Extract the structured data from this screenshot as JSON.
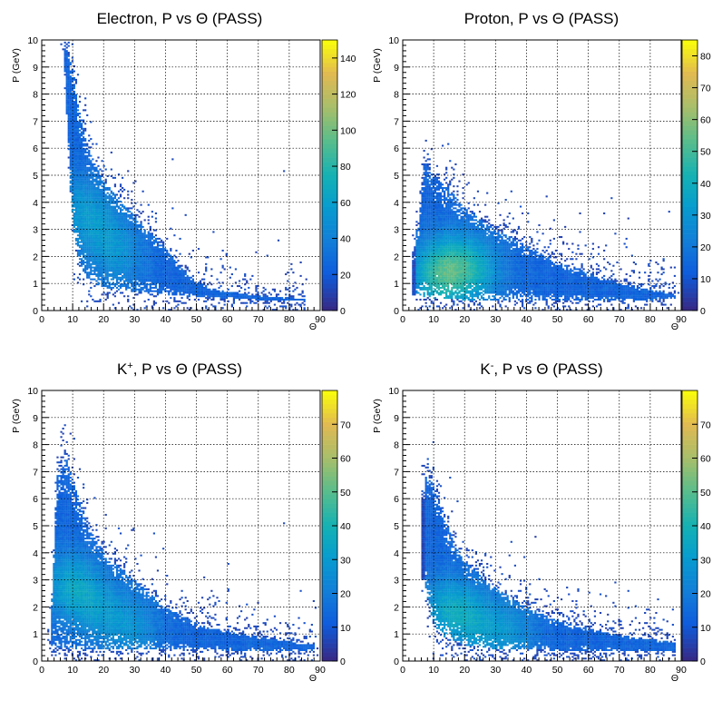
{
  "chart_data": [
    {
      "type": "heatmap",
      "title_parts": [
        {
          "text": "Electron, P  vs ",
          "sup": ""
        },
        {
          "text": "Θ (PASS)",
          "sup": ""
        }
      ],
      "xlabel": "Θ",
      "ylabel": "P (GeV)",
      "xlim": [
        0,
        90
      ],
      "ylim": [
        0,
        10
      ],
      "x_ticks": [
        "0",
        "10",
        "20",
        "30",
        "40",
        "50",
        "60",
        "70",
        "80",
        "90"
      ],
      "y_ticks": [
        "0",
        "1",
        "2",
        "3",
        "4",
        "5",
        "6",
        "7",
        "8",
        "9",
        "10"
      ],
      "z_ticks": [
        "0",
        "20",
        "40",
        "60",
        "80",
        "100",
        "120",
        "140"
      ],
      "zmax": 150,
      "grid": true,
      "colorscale": "kBird",
      "density": {
        "kind": "curve",
        "lower": [
          [
            7,
            10.0
          ],
          [
            8,
            7.5
          ],
          [
            9,
            5.0
          ],
          [
            10,
            3.2
          ],
          [
            12,
            1.8
          ],
          [
            15,
            1.1
          ],
          [
            20,
            0.85
          ],
          [
            30,
            0.7
          ],
          [
            40,
            0.6
          ],
          [
            50,
            0.5
          ],
          [
            70,
            0.4
          ],
          [
            85,
            0.35
          ]
        ],
        "upper": [
          [
            7,
            10.0
          ],
          [
            10,
            9.0
          ],
          [
            12,
            7.5
          ],
          [
            15,
            6.0
          ],
          [
            20,
            4.8
          ],
          [
            30,
            3.5
          ],
          [
            40,
            2.3
          ],
          [
            45,
            1.6
          ],
          [
            50,
            1.1
          ],
          [
            55,
            0.8
          ],
          [
            70,
            0.55
          ],
          [
            85,
            0.45
          ]
        ],
        "xmin": 7,
        "xmax": 85,
        "peak": [
          [
            12,
            4.0
          ],
          [
            18,
            3.0
          ],
          [
            25,
            2.0
          ]
        ]
      }
    },
    {
      "type": "heatmap",
      "title_parts": [
        {
          "text": "Proton, P  vs ",
          "sup": ""
        },
        {
          "text": "Θ (PASS)",
          "sup": ""
        }
      ],
      "xlabel": "Θ",
      "ylabel": "P (GeV)",
      "xlim": [
        0,
        90
      ],
      "ylim": [
        0,
        10
      ],
      "x_ticks": [
        "0",
        "10",
        "20",
        "30",
        "40",
        "50",
        "60",
        "70",
        "80",
        "90"
      ],
      "y_ticks": [
        "0",
        "1",
        "2",
        "3",
        "4",
        "5",
        "6",
        "7",
        "8",
        "9",
        "10"
      ],
      "z_ticks": [
        "0",
        "10",
        "20",
        "30",
        "40",
        "50",
        "60",
        "70",
        "80"
      ],
      "zmax": 85,
      "grid": true,
      "colorscale": "kBird",
      "density": {
        "kind": "curve",
        "lower": [
          [
            5,
            0.55
          ],
          [
            10,
            0.45
          ],
          [
            20,
            0.4
          ],
          [
            40,
            0.4
          ],
          [
            60,
            0.4
          ],
          [
            80,
            0.4
          ],
          [
            88,
            0.45
          ]
        ],
        "upper": [
          [
            5,
            3.0
          ],
          [
            7,
            5.5
          ],
          [
            10,
            5.0
          ],
          [
            15,
            4.5
          ],
          [
            20,
            3.8
          ],
          [
            30,
            3.0
          ],
          [
            40,
            2.4
          ],
          [
            50,
            1.8
          ],
          [
            60,
            1.4
          ],
          [
            70,
            1.0
          ],
          [
            80,
            0.8
          ],
          [
            88,
            0.6
          ]
        ],
        "xmin": 4,
        "xmax": 88,
        "peak": [
          [
            10,
            1.5
          ],
          [
            15,
            1.6
          ],
          [
            20,
            1.7
          ],
          [
            25,
            1.4
          ],
          [
            12,
            1.0
          ]
        ]
      }
    },
    {
      "type": "heatmap",
      "title_parts": [
        {
          "text": "K",
          "sup": "+"
        },
        {
          "text": ", P  vs Θ (PASS)",
          "sup": ""
        }
      ],
      "xlabel": "Θ",
      "ylabel": "P (GeV)",
      "xlim": [
        0,
        90
      ],
      "ylim": [
        0,
        10
      ],
      "x_ticks": [
        "0",
        "10",
        "20",
        "30",
        "40",
        "50",
        "60",
        "70",
        "80",
        "90"
      ],
      "y_ticks": [
        "0",
        "1",
        "2",
        "3",
        "4",
        "5",
        "6",
        "7",
        "8",
        "9",
        "10"
      ],
      "z_ticks": [
        "0",
        "10",
        "20",
        "30",
        "40",
        "50",
        "60",
        "70"
      ],
      "zmax": 80,
      "grid": true,
      "colorscale": "kBird",
      "density": {
        "kind": "curve",
        "lower": [
          [
            3,
            0.6
          ],
          [
            5,
            0.5
          ],
          [
            10,
            0.45
          ],
          [
            20,
            0.45
          ],
          [
            40,
            0.45
          ],
          [
            60,
            0.4
          ],
          [
            80,
            0.4
          ],
          [
            88,
            0.4
          ]
        ],
        "upper": [
          [
            3,
            1.5
          ],
          [
            5,
            7.0
          ],
          [
            8,
            7.5
          ],
          [
            12,
            6.0
          ],
          [
            15,
            5.0
          ],
          [
            20,
            4.0
          ],
          [
            30,
            3.0
          ],
          [
            40,
            2.0
          ],
          [
            50,
            1.4
          ],
          [
            60,
            1.1
          ],
          [
            70,
            0.9
          ],
          [
            88,
            0.6
          ]
        ],
        "xmin": 3,
        "xmax": 88,
        "peak": [
          [
            8,
            3.0
          ],
          [
            12,
            2.5
          ],
          [
            20,
            1.8
          ],
          [
            30,
            1.2
          ]
        ]
      }
    },
    {
      "type": "heatmap",
      "title_parts": [
        {
          "text": "K",
          "sup": "-"
        },
        {
          "text": ", P  vs Θ (PASS)",
          "sup": ""
        }
      ],
      "xlabel": "Θ",
      "ylabel": "P (GeV)",
      "xlim": [
        0,
        90
      ],
      "ylim": [
        0,
        10
      ],
      "x_ticks": [
        "0",
        "10",
        "20",
        "30",
        "40",
        "50",
        "60",
        "70",
        "80",
        "90"
      ],
      "y_ticks": [
        "0",
        "1",
        "2",
        "3",
        "4",
        "5",
        "6",
        "7",
        "8",
        "9",
        "10"
      ],
      "z_ticks": [
        "0",
        "10",
        "20",
        "30",
        "40",
        "50",
        "60",
        "70"
      ],
      "zmax": 80,
      "grid": true,
      "colorscale": "kBird",
      "density": {
        "kind": "curve",
        "lower": [
          [
            7,
            3.0
          ],
          [
            9,
            1.8
          ],
          [
            11,
            1.2
          ],
          [
            13,
            0.9
          ],
          [
            20,
            0.6
          ],
          [
            30,
            0.45
          ],
          [
            50,
            0.4
          ],
          [
            70,
            0.35
          ],
          [
            88,
            0.35
          ]
        ],
        "upper": [
          [
            7,
            7.0
          ],
          [
            10,
            6.5
          ],
          [
            13,
            5.5
          ],
          [
            16,
            4.5
          ],
          [
            20,
            3.7
          ],
          [
            30,
            2.7
          ],
          [
            40,
            2.0
          ],
          [
            50,
            1.5
          ],
          [
            60,
            1.2
          ],
          [
            70,
            0.95
          ],
          [
            80,
            0.8
          ],
          [
            88,
            0.7
          ]
        ],
        "xmin": 7,
        "xmax": 88,
        "peak": [
          [
            13,
            2.0
          ],
          [
            18,
            1.8
          ],
          [
            25,
            1.3
          ],
          [
            35,
            1.0
          ]
        ]
      }
    }
  ]
}
